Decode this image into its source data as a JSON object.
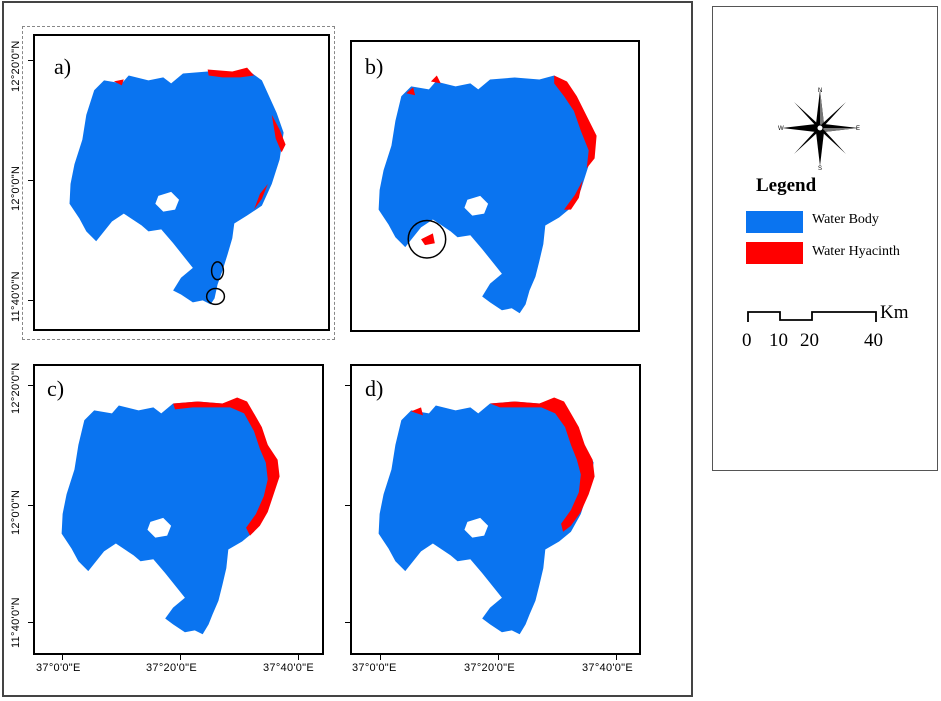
{
  "panels": [
    {
      "label": "a)"
    },
    {
      "label": "b)"
    },
    {
      "label": "c)"
    },
    {
      "label": "d)"
    }
  ],
  "latitude_labels": [
    "12°20'0\"N",
    "12°0'0\"N",
    "11°40'0\"N"
  ],
  "longitude_labels": [
    "37°0'0\"E",
    "37°20'0\"E",
    "37°40'0\"E"
  ],
  "legend": {
    "title": "Legend",
    "items": [
      {
        "label": "Water Body",
        "color": "#0a74f0"
      },
      {
        "label": "Water Hyacinth",
        "color": "#ff0000"
      }
    ]
  },
  "north_arrow": {
    "icon": "compass-rose-icon",
    "letters": [
      "N",
      "E",
      "S",
      "W"
    ]
  },
  "scale_bar": {
    "ticks": [
      "0",
      "10",
      "20",
      "40"
    ],
    "unit": "Km"
  },
  "colors": {
    "water": "#0a74f0",
    "hyacinth": "#ff0000",
    "background": "#ffffff"
  }
}
